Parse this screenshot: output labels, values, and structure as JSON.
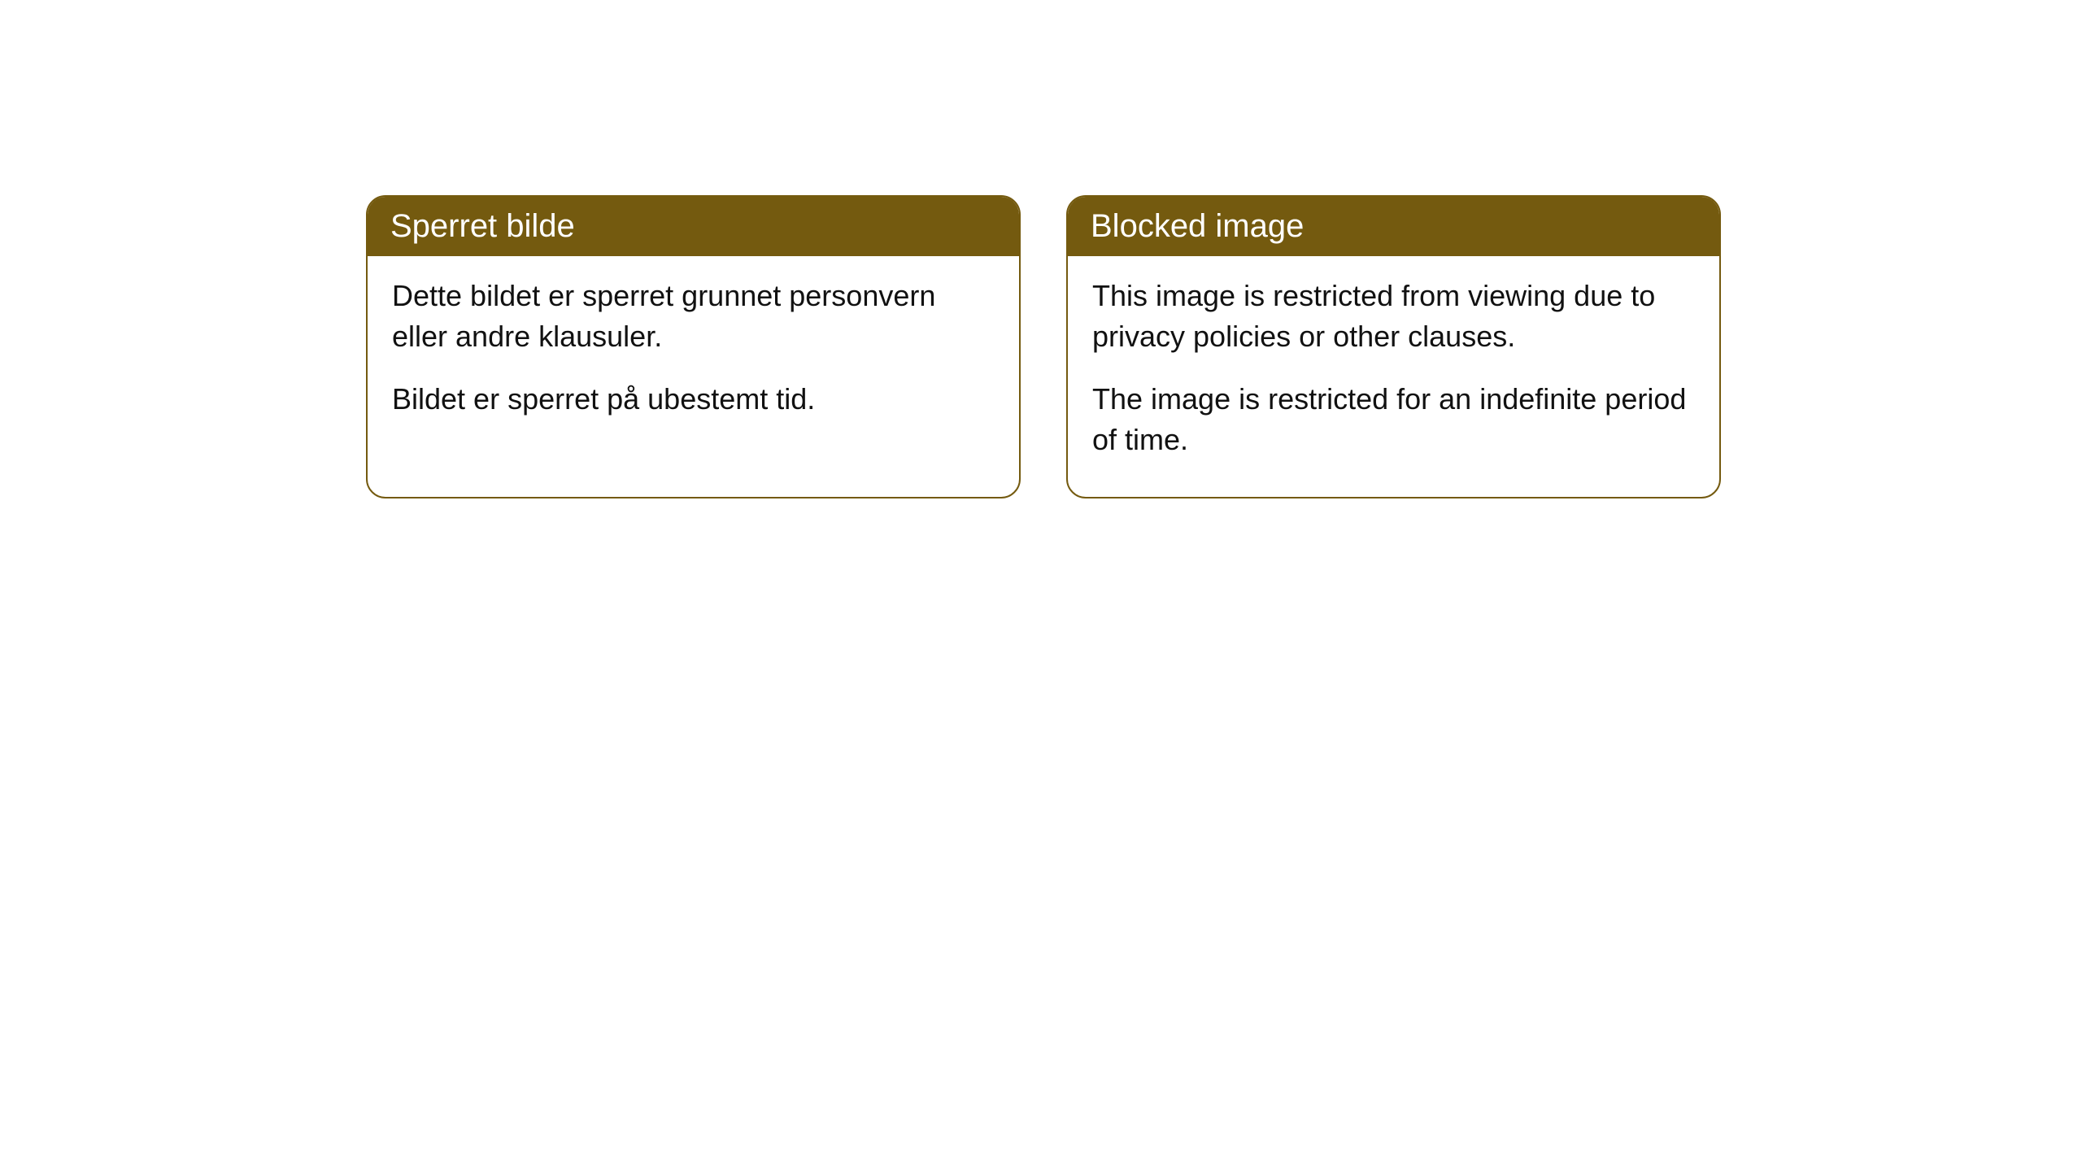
{
  "cards": [
    {
      "title": "Sperret bilde",
      "paragraph1": "Dette bildet er sperret grunnet personvern eller andre klausuler.",
      "paragraph2": "Bildet er sperret på ubestemt tid."
    },
    {
      "title": "Blocked image",
      "paragraph1": "This image is restricted from viewing due to privacy policies or other clauses.",
      "paragraph2": "The image is restricted for an indefinite period of time."
    }
  ],
  "styling": {
    "header_background_color": "#745a0f",
    "header_text_color": "#ffffff",
    "border_color": "#745a0f",
    "body_background_color": "#ffffff",
    "body_text_color": "#111111",
    "border_radius": 24,
    "header_fontsize": 40,
    "body_fontsize": 36
  }
}
